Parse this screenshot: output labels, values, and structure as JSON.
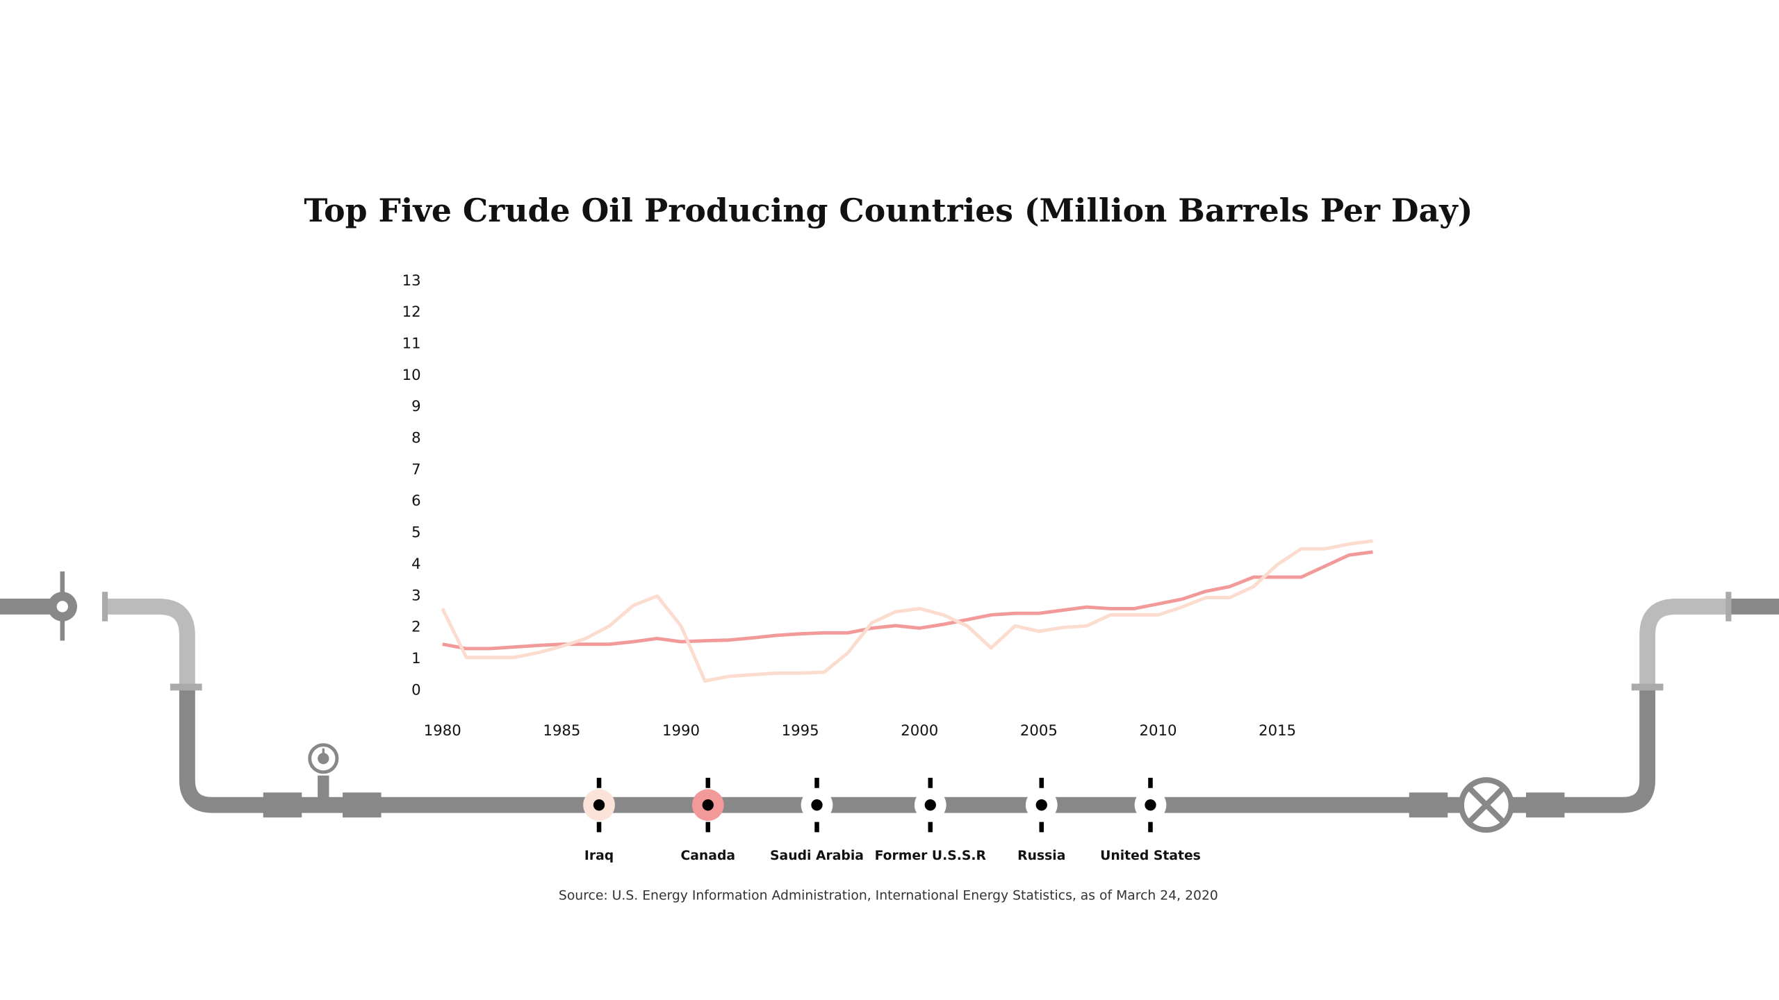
{
  "chart_data": {
    "type": "line",
    "title": "Top Five Crude Oil Producing Countries (Million Barrels Per Day)",
    "source": "Source: U.S. Energy Information Administration, International Energy Statistics, as of March 24, 2020",
    "x": [
      1980,
      1981,
      1982,
      1983,
      1984,
      1985,
      1986,
      1987,
      1988,
      1989,
      1990,
      1991,
      1992,
      1993,
      1994,
      1995,
      1996,
      1997,
      1998,
      1999,
      2000,
      2001,
      2002,
      2003,
      2004,
      2005,
      2006,
      2007,
      2008,
      2009,
      2010,
      2011,
      2012,
      2013,
      2014,
      2015,
      2016,
      2017,
      2018,
      2019
    ],
    "series": [
      {
        "name": "Iraq",
        "color": "#fbdccf",
        "marker_color": "#fbe3da",
        "values": [
          2.6,
          1.05,
          1.05,
          1.05,
          1.2,
          1.4,
          1.65,
          2.05,
          2.7,
          3.0,
          2.05,
          0.3,
          0.45,
          0.5,
          0.55,
          0.55,
          0.58,
          1.2,
          2.15,
          2.5,
          2.6,
          2.4,
          2.05,
          1.35,
          2.05,
          1.88,
          2.0,
          2.05,
          2.4,
          2.4,
          2.4,
          2.65,
          2.95,
          2.95,
          3.3,
          4.0,
          4.5,
          4.5,
          4.65,
          4.75
        ]
      },
      {
        "name": "Canada",
        "color": "#f29a9a",
        "marker_color": "#f29a9a",
        "values": [
          1.47,
          1.33,
          1.33,
          1.38,
          1.43,
          1.47,
          1.47,
          1.47,
          1.55,
          1.65,
          1.55,
          1.58,
          1.6,
          1.67,
          1.75,
          1.8,
          1.83,
          1.83,
          1.98,
          2.06,
          1.98,
          2.1,
          2.25,
          2.4,
          2.45,
          2.45,
          2.55,
          2.65,
          2.6,
          2.6,
          2.75,
          2.9,
          3.15,
          3.3,
          3.6,
          3.6,
          3.6,
          3.95,
          4.3,
          4.4
        ]
      }
    ],
    "other_countries": [
      "Saudi Arabia",
      "Former U.S.S.R",
      "Russia",
      "United States"
    ],
    "other_color": "#ffffff",
    "xlim": [
      1980,
      2019
    ],
    "xticks": [
      1980,
      1985,
      1990,
      1995,
      2000,
      2005,
      2010,
      2015
    ],
    "ylim": [
      0,
      13
    ],
    "yticks": [
      0,
      1,
      2,
      3,
      4,
      5,
      6,
      7,
      8,
      9,
      10,
      11,
      12,
      13
    ]
  }
}
